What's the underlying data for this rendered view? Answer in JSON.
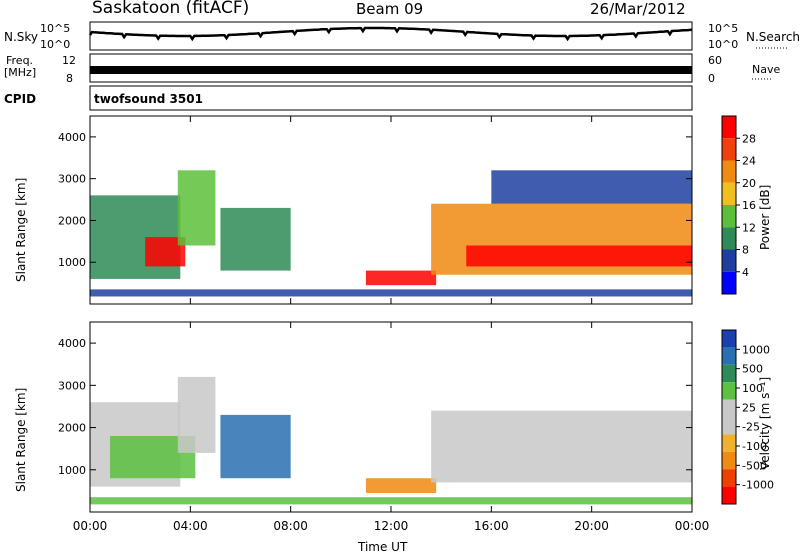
{
  "header": {
    "station": "Saskatoon (fitACF)",
    "beam": "Beam 09",
    "date": "26/Mar/2012"
  },
  "top_panels": {
    "nsky_label": "N.Sky",
    "nsky_ticks": [
      "10^5",
      "10^0"
    ],
    "nsearch_ticks": [
      "10^5",
      "10^0"
    ],
    "nsearch_label": "N.Search",
    "freq_label": "Freq.",
    "freq_unit": "[MHz]",
    "freq_ticks": [
      "12",
      "8"
    ],
    "nave_ticks": [
      "60",
      "0"
    ],
    "nave_label": "Nave",
    "cpid_label": "CPID",
    "cpid_value": "twofsound 3501"
  },
  "colors": {
    "power_scale": [
      "#0000ff",
      "#1f3fa0",
      "#2e8b57",
      "#5cbf3a",
      "#f0c020",
      "#f08a10",
      "#f04010",
      "#ff0000"
    ],
    "velocity_scale": [
      "#ff0000",
      "#f04000",
      "#f08a10",
      "#f0b030",
      "#c8c8c8",
      "#c8c8c8",
      "#5cc040",
      "#2e8b57",
      "#2a6fb0",
      "#1a3fb0"
    ]
  },
  "chart_data": [
    {
      "type": "heatmap",
      "name": "power-panel",
      "ylabel": "Slant Range [km]",
      "yticks": [
        "1000",
        "2000",
        "3000",
        "4000"
      ],
      "ylim": [
        0,
        4500
      ],
      "xlim": [
        0,
        24
      ],
      "colorbar_label": "Power [dB]",
      "colorbar_ticks": [
        "4",
        "8",
        "12",
        "16",
        "20",
        "24",
        "28"
      ],
      "regions": [
        {
          "t0": 0.0,
          "t1": 3.6,
          "r0": 600,
          "r1": 2600,
          "level": 2
        },
        {
          "t0": 2.2,
          "t1": 3.8,
          "r0": 900,
          "r1": 1600,
          "level": 7
        },
        {
          "t0": 3.5,
          "t1": 5.0,
          "r0": 1400,
          "r1": 3200,
          "level": 3
        },
        {
          "t0": 5.2,
          "t1": 8.0,
          "r0": 800,
          "r1": 2300,
          "level": 2
        },
        {
          "t0": 11.0,
          "t1": 13.8,
          "r0": 450,
          "r1": 800,
          "level": 7
        },
        {
          "t0": 13.6,
          "t1": 24.0,
          "r0": 700,
          "r1": 2400,
          "level": 5
        },
        {
          "t0": 15.0,
          "t1": 24.0,
          "r0": 900,
          "r1": 1400,
          "level": 7
        },
        {
          "t0": 16.0,
          "t1": 24.0,
          "r0": 2400,
          "r1": 3200,
          "level": 1
        },
        {
          "t0": 0.0,
          "t1": 24.0,
          "r0": 180,
          "r1": 350,
          "level": 1
        }
      ]
    },
    {
      "type": "heatmap",
      "name": "velocity-panel",
      "ylabel": "Slant Range [km]",
      "yticks": [
        "1000",
        "2000",
        "3000",
        "4000"
      ],
      "ylim": [
        0,
        4500
      ],
      "xlim": [
        0,
        24
      ],
      "colorbar_label": "Velocity [m s⁻¹]",
      "colorbar_ticks": [
        "1000",
        "500",
        "100",
        "25",
        "-25",
        "-100",
        "-500",
        "-1000"
      ],
      "xlabel": "Time UT",
      "xticks": [
        "00:00",
        "04:00",
        "08:00",
        "12:00",
        "16:00",
        "20:00",
        "00:00"
      ],
      "regions": [
        {
          "t0": 0.0,
          "t1": 3.6,
          "r0": 600,
          "r1": 2600,
          "level": 4
        },
        {
          "t0": 0.8,
          "t1": 4.2,
          "r0": 800,
          "r1": 1800,
          "level": 6
        },
        {
          "t0": 3.5,
          "t1": 5.0,
          "r0": 1400,
          "r1": 3200,
          "level": 4
        },
        {
          "t0": 5.2,
          "t1": 8.0,
          "r0": 800,
          "r1": 2300,
          "level": 8
        },
        {
          "t0": 11.0,
          "t1": 13.8,
          "r0": 450,
          "r1": 800,
          "level": 2
        },
        {
          "t0": 13.6,
          "t1": 24.0,
          "r0": 700,
          "r1": 2400,
          "level": 4
        },
        {
          "t0": 0.0,
          "t1": 24.0,
          "r0": 180,
          "r1": 350,
          "level": 6
        }
      ]
    }
  ]
}
